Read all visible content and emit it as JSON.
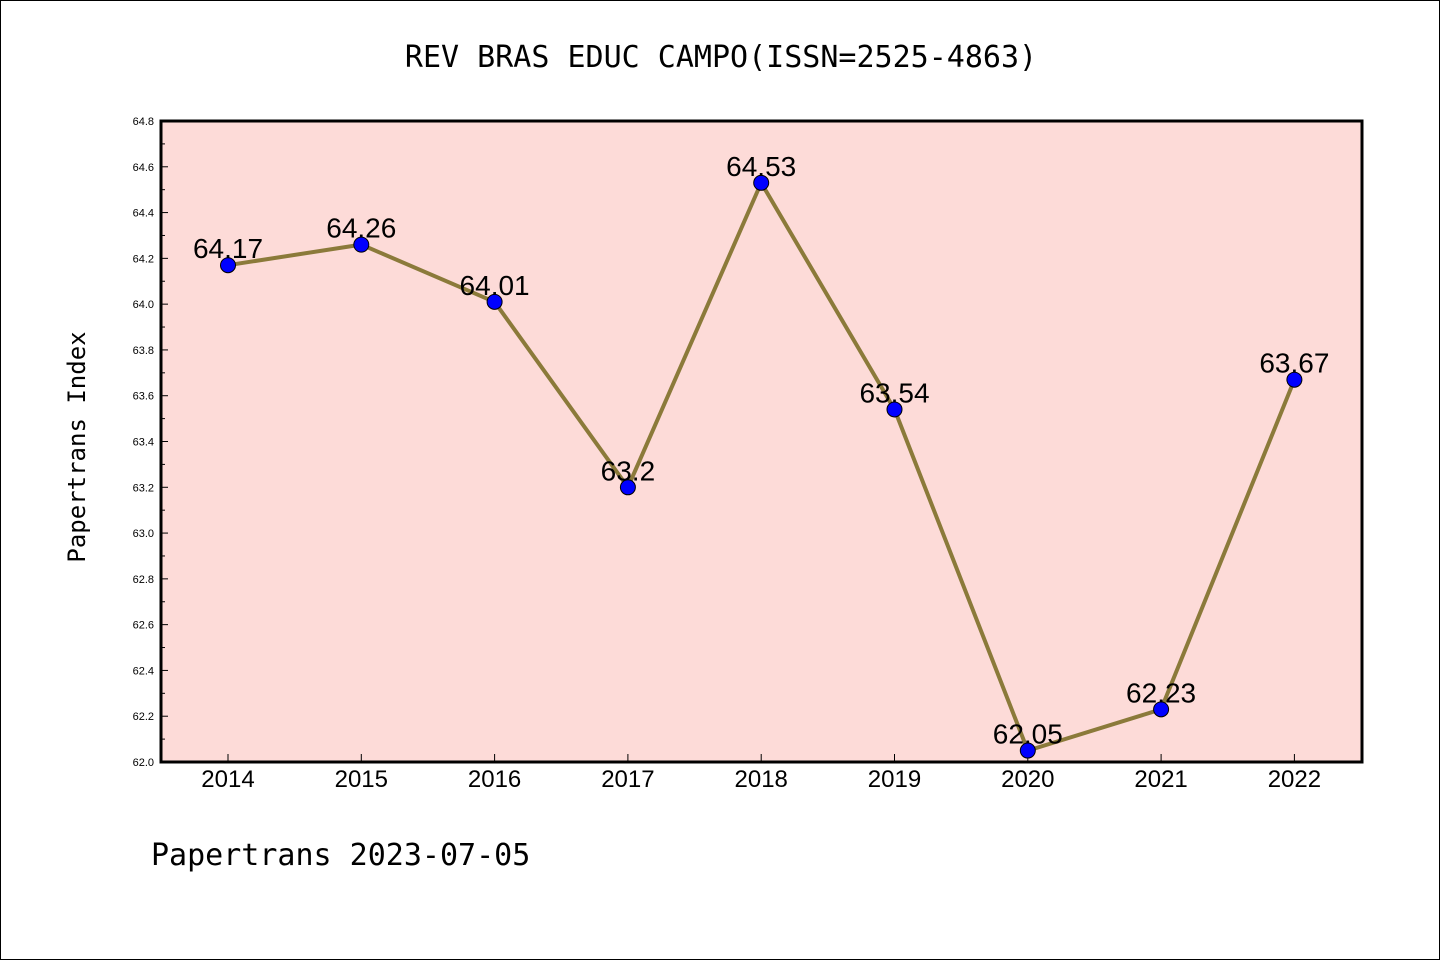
{
  "chart_data": {
    "type": "line",
    "title": "REV BRAS EDUC CAMPO(ISSN=2525-4863)",
    "ylabel": "Papertrans Index",
    "xlabel": "",
    "footer": "Papertrans 2023-07-05",
    "categories": [
      "2014",
      "2015",
      "2016",
      "2017",
      "2018",
      "2019",
      "2020",
      "2021",
      "2022"
    ],
    "series": [
      {
        "values": [
          64.17,
          64.26,
          64.01,
          63.2,
          64.53,
          63.54,
          62.05,
          62.23,
          63.67
        ],
        "data_labels": [
          "64.17",
          "64.26",
          "64.01",
          "63.2",
          "64.53",
          "63.54",
          "62.05",
          "62.23",
          "63.67"
        ],
        "line_color": "#8b7a3a",
        "marker_color": "#0000ff"
      }
    ],
    "ylim": [
      62.0,
      64.8
    ],
    "yticks": [
      "62.0",
      "62.2",
      "62.4",
      "62.6",
      "62.8",
      "63.0",
      "63.2",
      "63.4",
      "63.6",
      "63.8",
      "64.0",
      "64.2",
      "64.4",
      "64.6",
      "64.8"
    ],
    "plot_background": "#fddbd8",
    "grid": false,
    "legend": "none"
  }
}
